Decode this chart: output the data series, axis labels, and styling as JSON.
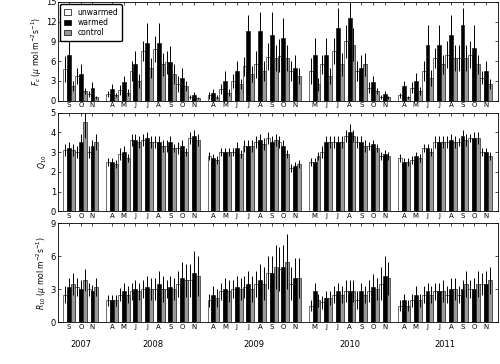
{
  "legend_labels": [
    "unwarmed",
    "warmed",
    "control"
  ],
  "bar_colors": [
    "white",
    "black",
    "#999999"
  ],
  "bar_edgecolor": "black",
  "years": [
    "2007",
    "2008",
    "2009",
    "2010",
    "2011"
  ],
  "year_months": [
    [
      "S",
      "O",
      "N"
    ],
    [
      "A",
      "M",
      "J",
      "J",
      "A",
      "S",
      "O",
      "N"
    ],
    [
      "A",
      "M",
      "J",
      "J",
      "A",
      "S",
      "O",
      "N"
    ],
    [
      "M",
      "J",
      "J",
      "A",
      "S",
      "O",
      "N"
    ],
    [
      "A",
      "M",
      "J",
      "J",
      "A",
      "S",
      "O",
      "N"
    ]
  ],
  "fc_data": {
    "unwarmed": [
      [
        4.8,
        3.8,
        1.0
      ],
      [
        1.0,
        1.6,
        4.5,
        7.5,
        7.8,
        5.8,
        2.5,
        0.5
      ],
      [
        0.8,
        1.8,
        3.0,
        5.2,
        5.5,
        6.7,
        6.8,
        4.5
      ],
      [
        4.5,
        5.5,
        7.5,
        9.0,
        4.5,
        2.0,
        0.5
      ],
      [
        0.8,
        2.0,
        4.5,
        6.5,
        7.0,
        6.5,
        7.0,
        3.5
      ]
    ],
    "warmed": [
      [
        7.0,
        4.0,
        2.0
      ],
      [
        1.8,
        2.8,
        5.5,
        8.8,
        8.8,
        5.8,
        3.5,
        0.8
      ],
      [
        1.2,
        3.0,
        4.5,
        10.5,
        10.5,
        10.0,
        9.5,
        5.0
      ],
      [
        7.0,
        7.0,
        11.0,
        12.5,
        5.0,
        2.8,
        1.0
      ],
      [
        2.2,
        3.0,
        8.5,
        8.5,
        10.0,
        11.5,
        8.0,
        4.5
      ]
    ],
    "control": [
      [
        2.2,
        1.5,
        0.5
      ],
      [
        0.8,
        1.2,
        3.0,
        5.0,
        5.5,
        4.0,
        2.2,
        0.4
      ],
      [
        0.6,
        1.2,
        2.5,
        4.0,
        4.5,
        6.5,
        6.5,
        3.8
      ],
      [
        2.5,
        3.8,
        5.5,
        8.5,
        5.5,
        1.5,
        0.5
      ],
      [
        0.5,
        1.5,
        3.5,
        5.5,
        6.5,
        6.5,
        5.5,
        2.5
      ]
    ]
  },
  "fc_err": {
    "unwarmed": [
      [
        2.0,
        1.2,
        0.5
      ],
      [
        0.5,
        0.8,
        1.5,
        1.5,
        2.0,
        1.8,
        1.2,
        0.3
      ],
      [
        0.5,
        0.8,
        1.0,
        1.5,
        2.0,
        2.0,
        2.5,
        1.5
      ],
      [
        2.0,
        1.5,
        2.0,
        2.5,
        1.5,
        0.8,
        0.3
      ],
      [
        0.4,
        0.8,
        1.5,
        1.5,
        2.0,
        2.0,
        2.0,
        1.0
      ]
    ],
    "warmed": [
      [
        2.5,
        1.5,
        0.8
      ],
      [
        0.8,
        1.0,
        2.0,
        3.0,
        3.0,
        2.5,
        1.5,
        0.5
      ],
      [
        0.5,
        1.5,
        1.5,
        2.5,
        3.0,
        3.5,
        3.0,
        2.0
      ],
      [
        2.5,
        2.5,
        3.0,
        3.0,
        2.0,
        1.0,
        0.5
      ],
      [
        0.8,
        1.2,
        3.0,
        3.0,
        3.0,
        2.5,
        3.5,
        1.5
      ]
    ],
    "control": [
      [
        0.8,
        0.5,
        0.2
      ],
      [
        0.3,
        0.5,
        1.0,
        1.5,
        1.8,
        1.5,
        0.8,
        0.2
      ],
      [
        0.3,
        0.5,
        0.8,
        1.2,
        1.5,
        2.0,
        2.0,
        1.2
      ],
      [
        1.0,
        1.2,
        1.8,
        2.5,
        1.8,
        0.5,
        0.2
      ],
      [
        0.2,
        0.6,
        1.2,
        1.5,
        2.0,
        2.0,
        1.5,
        0.8
      ]
    ]
  },
  "q10_data": {
    "unwarmed": [
      [
        3.1,
        3.0,
        3.0
      ],
      [
        2.5,
        2.9,
        3.6,
        3.6,
        3.5,
        3.3,
        3.2,
        3.7
      ],
      [
        2.8,
        3.0,
        3.0,
        3.3,
        3.5,
        3.7,
        3.5,
        2.2
      ],
      [
        2.5,
        3.0,
        3.5,
        3.8,
        3.5,
        3.3,
        2.8
      ],
      [
        2.7,
        2.6,
        3.2,
        3.5,
        3.5,
        3.5,
        3.7,
        3.0
      ]
    ],
    "warmed": [
      [
        3.2,
        3.5,
        3.3
      ],
      [
        2.5,
        3.0,
        3.6,
        3.7,
        3.5,
        3.5,
        3.3,
        3.8
      ],
      [
        2.7,
        3.0,
        3.2,
        3.3,
        3.6,
        3.5,
        3.3,
        2.3
      ],
      [
        2.5,
        3.5,
        3.5,
        4.0,
        3.5,
        3.4,
        2.9
      ],
      [
        2.5,
        2.8,
        3.2,
        3.5,
        3.6,
        3.8,
        3.7,
        3.0
      ]
    ],
    "control": [
      [
        3.1,
        4.5,
        3.5
      ],
      [
        2.4,
        2.7,
        3.5,
        3.5,
        3.3,
        3.2,
        3.0,
        3.6
      ],
      [
        2.6,
        3.0,
        2.9,
        3.3,
        3.4,
        3.6,
        2.9,
        2.4
      ],
      [
        2.8,
        3.5,
        3.5,
        3.8,
        3.3,
        3.2,
        2.8
      ],
      [
        2.5,
        2.7,
        3.0,
        3.5,
        3.5,
        3.6,
        3.7,
        2.8
      ]
    ]
  },
  "q10_err": {
    "unwarmed": [
      [
        0.3,
        0.3,
        0.3
      ],
      [
        0.2,
        0.3,
        0.3,
        0.3,
        0.3,
        0.3,
        0.3,
        0.3
      ],
      [
        0.2,
        0.2,
        0.2,
        0.3,
        0.3,
        0.3,
        0.3,
        0.2
      ],
      [
        0.2,
        0.3,
        0.3,
        0.3,
        0.3,
        0.2,
        0.2
      ],
      [
        0.2,
        0.2,
        0.2,
        0.3,
        0.3,
        0.2,
        0.2,
        0.2
      ]
    ],
    "warmed": [
      [
        0.3,
        0.4,
        0.3
      ],
      [
        0.2,
        0.3,
        0.3,
        0.3,
        0.3,
        0.3,
        0.3,
        0.3
      ],
      [
        0.2,
        0.2,
        0.3,
        0.3,
        0.3,
        0.3,
        0.3,
        0.2
      ],
      [
        0.2,
        0.3,
        0.3,
        0.4,
        0.3,
        0.2,
        0.2
      ],
      [
        0.2,
        0.2,
        0.2,
        0.3,
        0.3,
        0.3,
        0.3,
        0.2
      ]
    ],
    "control": [
      [
        0.3,
        0.8,
        0.4
      ],
      [
        0.2,
        0.2,
        0.3,
        0.3,
        0.3,
        0.2,
        0.2,
        0.3
      ],
      [
        0.2,
        0.2,
        0.2,
        0.3,
        0.3,
        0.3,
        0.2,
        0.2
      ],
      [
        0.2,
        0.3,
        0.3,
        0.3,
        0.3,
        0.2,
        0.2
      ],
      [
        0.2,
        0.2,
        0.2,
        0.3,
        0.3,
        0.3,
        0.3,
        0.2
      ]
    ]
  },
  "r10_data": {
    "unwarmed": [
      [
        2.5,
        3.2,
        3.0
      ],
      [
        2.0,
        2.5,
        2.8,
        3.0,
        3.0,
        3.0,
        3.5,
        3.8
      ],
      [
        2.0,
        2.8,
        3.0,
        3.2,
        3.5,
        4.5,
        4.8,
        3.5
      ],
      [
        1.5,
        1.8,
        2.5,
        2.8,
        2.0,
        2.8,
        3.5
      ],
      [
        1.5,
        2.0,
        2.5,
        2.8,
        2.5,
        2.5,
        3.0,
        3.5
      ]
    ],
    "warmed": [
      [
        3.2,
        3.0,
        2.8
      ],
      [
        2.0,
        2.8,
        3.0,
        3.2,
        3.5,
        3.2,
        4.0,
        4.5
      ],
      [
        2.5,
        3.0,
        3.2,
        3.5,
        3.8,
        4.5,
        5.0,
        4.0
      ],
      [
        2.8,
        2.2,
        2.8,
        2.8,
        2.8,
        3.2,
        4.2
      ],
      [
        2.0,
        2.5,
        2.8,
        2.8,
        3.0,
        3.0,
        3.0,
        3.5
      ]
    ],
    "control": [
      [
        3.5,
        3.8,
        3.2
      ],
      [
        2.0,
        2.5,
        2.8,
        3.0,
        3.0,
        3.0,
        3.8,
        4.2
      ],
      [
        2.2,
        2.8,
        3.0,
        3.0,
        3.5,
        5.0,
        5.5,
        4.0
      ],
      [
        2.0,
        2.2,
        2.5,
        2.8,
        2.5,
        3.0,
        4.0
      ],
      [
        1.5,
        2.0,
        2.5,
        2.8,
        3.0,
        3.5,
        3.5,
        3.8
      ]
    ]
  },
  "r10_err": {
    "unwarmed": [
      [
        0.8,
        0.8,
        0.6
      ],
      [
        0.5,
        0.6,
        0.8,
        0.8,
        1.0,
        0.8,
        1.2,
        1.5
      ],
      [
        0.6,
        0.8,
        0.8,
        1.0,
        1.2,
        1.5,
        2.0,
        1.5
      ],
      [
        0.5,
        0.6,
        0.8,
        1.0,
        0.8,
        1.0,
        1.5
      ],
      [
        0.5,
        0.6,
        0.8,
        0.8,
        0.8,
        0.8,
        0.8,
        1.0
      ]
    ],
    "warmed": [
      [
        0.8,
        0.8,
        0.6
      ],
      [
        0.5,
        0.8,
        0.8,
        1.0,
        1.2,
        1.0,
        1.5,
        2.0
      ],
      [
        0.8,
        1.0,
        1.0,
        1.2,
        1.5,
        1.5,
        2.0,
        1.8
      ],
      [
        0.8,
        0.6,
        0.8,
        1.0,
        0.8,
        1.2,
        1.8
      ],
      [
        0.6,
        0.8,
        0.8,
        0.8,
        1.0,
        0.8,
        1.0,
        1.2
      ]
    ],
    "control": [
      [
        1.0,
        1.0,
        0.8
      ],
      [
        0.5,
        0.8,
        0.8,
        1.0,
        1.2,
        1.0,
        1.5,
        1.8
      ],
      [
        0.8,
        1.0,
        1.0,
        1.2,
        1.5,
        2.0,
        2.5,
        1.8
      ],
      [
        0.6,
        0.6,
        0.8,
        1.0,
        0.8,
        1.0,
        1.5
      ],
      [
        0.5,
        0.6,
        0.8,
        1.0,
        1.0,
        1.2,
        1.2,
        1.2
      ]
    ]
  }
}
